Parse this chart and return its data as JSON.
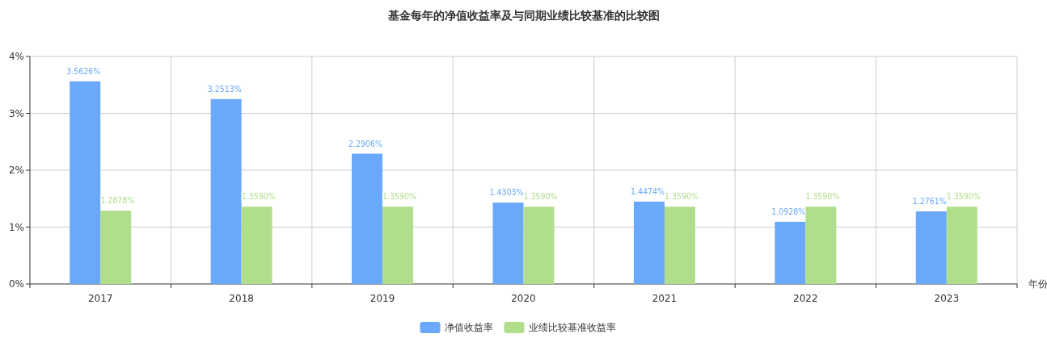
{
  "chart_data": {
    "type": "bar",
    "title": "基金每年的净值收益率及与同期业绩比较基准的比较图",
    "xlabel": "年份",
    "categories": [
      "2017",
      "2018",
      "2019",
      "2020",
      "2021",
      "2022",
      "2023"
    ],
    "series": [
      {
        "name": "净值收益率",
        "color": "#6aa8fb",
        "values": [
          3.5626,
          3.2513,
          2.2906,
          1.4303,
          1.4474,
          1.0928,
          1.2761
        ],
        "value_labels": [
          "3.5626%",
          "3.2513%",
          "2.2906%",
          "1.4303%",
          "1.4474%",
          "1.0928%",
          "1.2761%"
        ]
      },
      {
        "name": "业绩比较基准收益率",
        "color": "#b0de8c",
        "values": [
          1.2878,
          1.359,
          1.359,
          1.359,
          1.359,
          1.359,
          1.359
        ],
        "value_labels": [
          "1.2878%",
          "1.3590%",
          "1.3590%",
          "1.3590%",
          "1.3590%",
          "1.3590%",
          "1.3590%"
        ]
      }
    ],
    "ylim": [
      0,
      4
    ],
    "yticks": [
      {
        "value": 0,
        "label": "0%"
      },
      {
        "value": 1,
        "label": "1%"
      },
      {
        "value": 2,
        "label": "2%"
      },
      {
        "value": 3,
        "label": "3%"
      },
      {
        "value": 4,
        "label": "4%"
      }
    ],
    "grid": true,
    "legend": "bottom"
  }
}
